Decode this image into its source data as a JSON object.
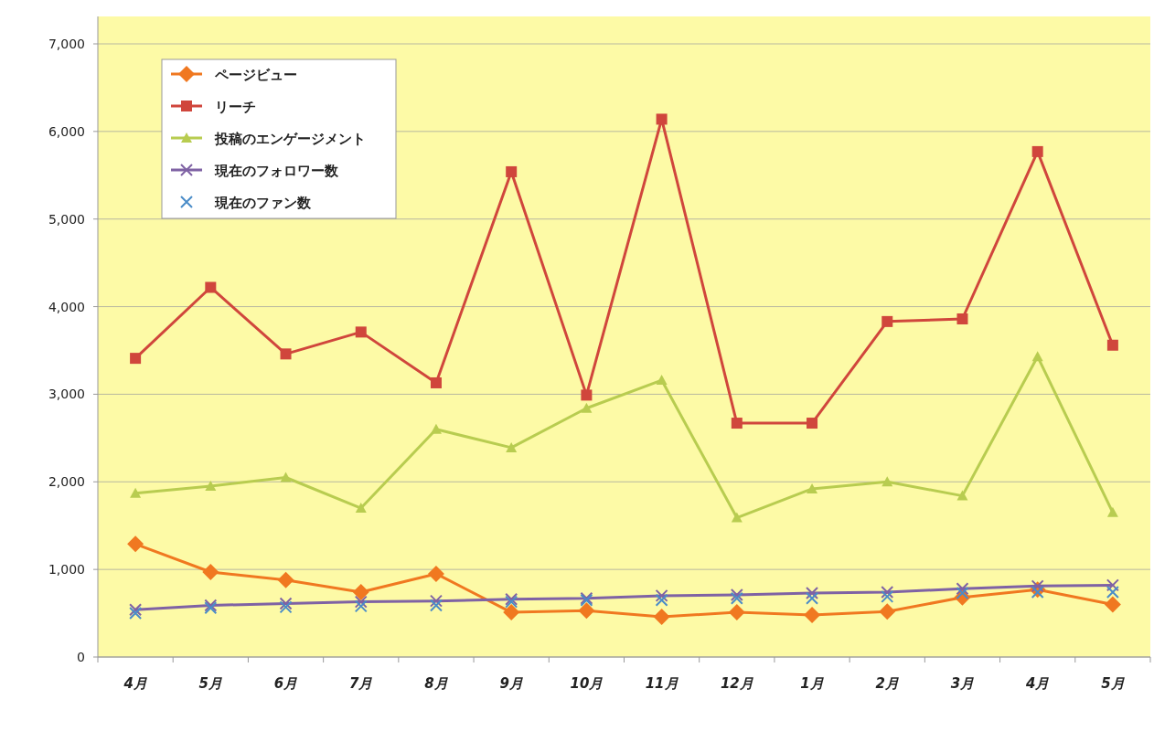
{
  "chart_data": {
    "type": "line",
    "categories": [
      "4月",
      "5月",
      "6月",
      "7月",
      "8月",
      "9月",
      "10月",
      "11月",
      "12月",
      "1月",
      "2月",
      "3月",
      "4月",
      "5月"
    ],
    "series": [
      {
        "name": "ページビュー",
        "color": "#f07820",
        "marker": "diamond",
        "values": [
          1290,
          970,
          880,
          740,
          950,
          510,
          530,
          460,
          510,
          480,
          520,
          680,
          770,
          600
        ]
      },
      {
        "name": "リーチ",
        "color": "#d0463c",
        "marker": "square",
        "values": [
          3410,
          4220,
          3460,
          3710,
          3130,
          5540,
          2990,
          6140,
          2670,
          2670,
          3830,
          3860,
          5770,
          3560
        ]
      },
      {
        "name": "投稿のエンゲージメント",
        "color": "#b8cc50",
        "marker": "triangle",
        "values": [
          1870,
          1950,
          2050,
          1700,
          2600,
          2390,
          2840,
          3160,
          1590,
          1920,
          2000,
          1840,
          3430,
          1650
        ]
      },
      {
        "name": "現在のフォロワー数",
        "color": "#7f62a4",
        "marker": "cross",
        "values": [
          540,
          590,
          610,
          630,
          640,
          660,
          670,
          700,
          710,
          730,
          740,
          780,
          810,
          820
        ]
      },
      {
        "name": "現在のファン数",
        "type": "scatter",
        "color": "#4a8cc8",
        "marker": "cross",
        "values": [
          500,
          560,
          570,
          580,
          590,
          630,
          650,
          650,
          670,
          670,
          690,
          730,
          740,
          740
        ]
      }
    ],
    "ylim": [
      0,
      7000
    ],
    "yticks": [
      {
        "value": 0,
        "label": "0"
      },
      {
        "value": 1000,
        "label": "1,000"
      },
      {
        "value": 2000,
        "label": "2,000"
      },
      {
        "value": 3000,
        "label": "3,000"
      },
      {
        "value": 4000,
        "label": "4,000"
      },
      {
        "value": 5000,
        "label": "5,000"
      },
      {
        "value": 6000,
        "label": "6,000"
      },
      {
        "value": 7000,
        "label": "7,000"
      }
    ],
    "grid": "y",
    "legend": "top left"
  }
}
